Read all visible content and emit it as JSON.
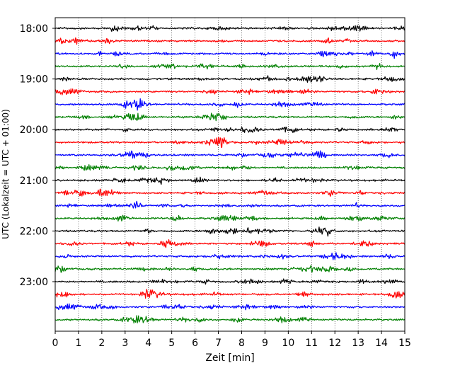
{
  "chart_data": {
    "type": "line",
    "title": "",
    "xlabel": "Zeit  [min]",
    "ylabel": "UTC (Lokalzeit = UTC + 01:00)",
    "xlim": [
      0,
      15
    ],
    "x_ticks": [
      "0",
      "1",
      "2",
      "3",
      "4",
      "5",
      "6",
      "7",
      "8",
      "9",
      "10",
      "11",
      "12",
      "13",
      "14",
      "15"
    ],
    "y_tick_labels": [
      "18:00",
      "19:00",
      "20:00",
      "21:00",
      "22:00",
      "23:00"
    ],
    "y_tick_rows": [
      0,
      4,
      8,
      12,
      16,
      20
    ],
    "trace_rows": 24,
    "trace_minutes": 15,
    "trace_colors": [
      "#000000",
      "#ff0000",
      "#0000ff",
      "#008000"
    ],
    "grid": {
      "vertical_dotted": true
    },
    "series": [
      {
        "start": "18:00",
        "color": "#000000"
      },
      {
        "start": "18:15",
        "color": "#ff0000"
      },
      {
        "start": "18:30",
        "color": "#0000ff"
      },
      {
        "start": "18:45",
        "color": "#008000"
      },
      {
        "start": "19:00",
        "color": "#000000"
      },
      {
        "start": "19:15",
        "color": "#ff0000"
      },
      {
        "start": "19:30",
        "color": "#0000ff"
      },
      {
        "start": "19:45",
        "color": "#008000"
      },
      {
        "start": "20:00",
        "color": "#000000"
      },
      {
        "start": "20:15",
        "color": "#ff0000"
      },
      {
        "start": "20:30",
        "color": "#0000ff"
      },
      {
        "start": "20:45",
        "color": "#008000"
      },
      {
        "start": "21:00",
        "color": "#000000"
      },
      {
        "start": "21:15",
        "color": "#ff0000"
      },
      {
        "start": "21:30",
        "color": "#0000ff"
      },
      {
        "start": "21:45",
        "color": "#008000"
      },
      {
        "start": "22:00",
        "color": "#000000"
      },
      {
        "start": "22:15",
        "color": "#ff0000"
      },
      {
        "start": "22:30",
        "color": "#0000ff"
      },
      {
        "start": "22:45",
        "color": "#008000"
      },
      {
        "start": "23:00",
        "color": "#000000"
      },
      {
        "start": "23:15",
        "color": "#ff0000"
      },
      {
        "start": "23:30",
        "color": "#0000ff"
      },
      {
        "start": "23:45",
        "color": "#008000"
      }
    ]
  }
}
